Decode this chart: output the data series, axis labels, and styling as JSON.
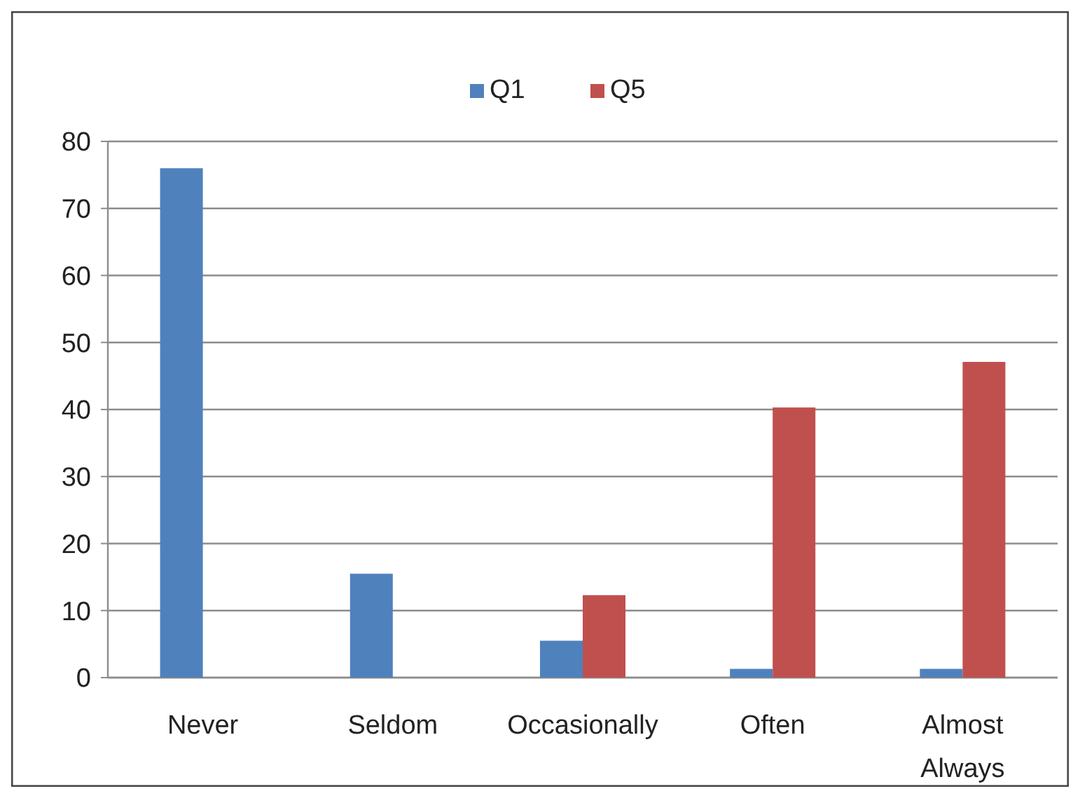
{
  "chart_data": {
    "type": "bar",
    "categories": [
      "Never",
      "Seldom",
      "Occasionally",
      "Often",
      "Almost Always"
    ],
    "series": [
      {
        "name": "Q1",
        "color": "#4f81bd",
        "values": [
          76,
          15.5,
          5.5,
          1.3,
          1.3
        ]
      },
      {
        "name": "Q5",
        "color": "#c0504d",
        "values": [
          0,
          0,
          12.3,
          40.3,
          47.1
        ]
      }
    ],
    "ylim": [
      0,
      80
    ],
    "yticks": [
      0,
      10,
      20,
      30,
      40,
      50,
      60,
      70,
      80
    ],
    "grid": "y",
    "legend": "top"
  }
}
